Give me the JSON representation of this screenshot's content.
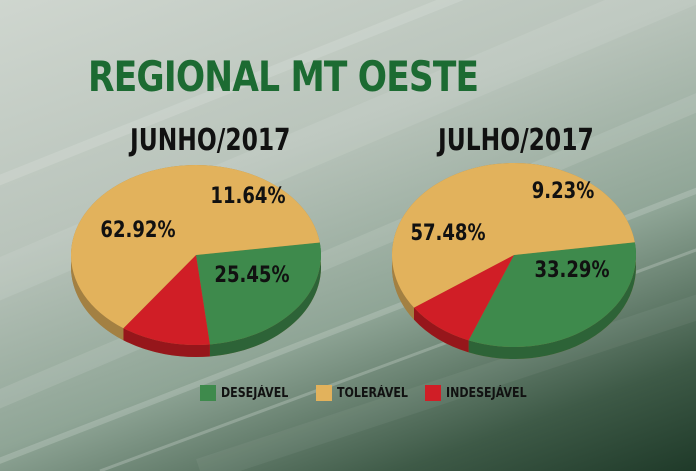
{
  "title": "REGIONAL MT OESTE",
  "colors": {
    "desejavel": "#3e8a4c",
    "toleravel": "#e2b25c",
    "indesejavel": "#d01e26",
    "title": "#1c6b32"
  },
  "legend": [
    {
      "label": "DESEJÁVEL",
      "color": "#3e8a4c"
    },
    {
      "label": "TOLERÁVEL",
      "color": "#e2b25c"
    },
    {
      "label": "INDESEJÁVEL",
      "color": "#d01e26"
    }
  ],
  "chart_data": [
    {
      "type": "pie",
      "title": "JUNHO/2017",
      "slices": [
        {
          "label": "DESEJÁVEL",
          "value": 25.45,
          "text": "25.45%"
        },
        {
          "label": "TOLERÁVEL",
          "value": 62.92,
          "text": "62.92%"
        },
        {
          "label": "INDESEJÁVEL",
          "value": 11.64,
          "text": "11.64%"
        }
      ]
    },
    {
      "type": "pie",
      "title": "JULHO/2017",
      "slices": [
        {
          "label": "DESEJÁVEL",
          "value": 33.29,
          "text": "33.29%"
        },
        {
          "label": "TOLERÁVEL",
          "value": 57.48,
          "text": "57.48%"
        },
        {
          "label": "INDESEJÁVEL",
          "value": 9.23,
          "text": "9.23%"
        }
      ]
    }
  ]
}
